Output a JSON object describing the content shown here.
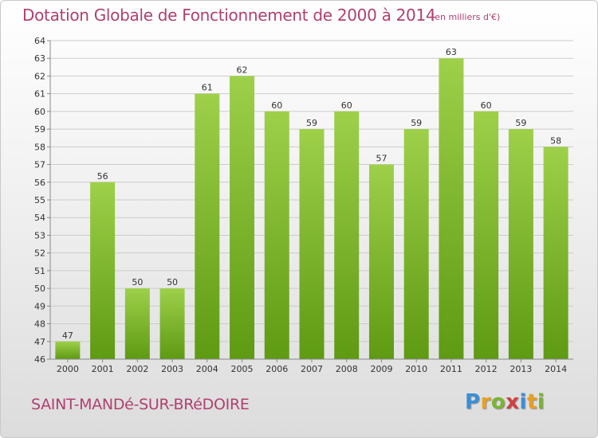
{
  "header": {
    "title": "Dotation Globale de Fonctionnement de 2000 à 2014",
    "unit_note": "(en milliers d'€)"
  },
  "footer": {
    "commune": "SAINT-MANDé-SUR-BRéDOIRE",
    "brand_letters": [
      "P",
      "r",
      "o",
      "x",
      "i",
      "t",
      "i"
    ],
    "brand_colors": [
      "#3a8fd6",
      "#e8a020",
      "#7ab530",
      "#d04040",
      "#3a8fd6",
      "#e8a020",
      "#7ab530"
    ]
  },
  "colors": {
    "title": "#b04070",
    "bar_light": "#9ed04a",
    "bar_dark": "#5e9a12",
    "grid": "#cccccc",
    "axis_text": "#333333"
  },
  "chart_data": {
    "type": "bar",
    "title": "Dotation Globale de Fonctionnement de 2000 à 2014",
    "subtitle": "(en milliers d'€)",
    "categories": [
      "2000",
      "2001",
      "2002",
      "2003",
      "2004",
      "2005",
      "2006",
      "2007",
      "2008",
      "2009",
      "2010",
      "2011",
      "2012",
      "2013",
      "2014"
    ],
    "values": [
      47,
      56,
      50,
      50,
      61,
      62,
      60,
      59,
      60,
      57,
      59,
      63,
      60,
      59,
      58
    ],
    "data_labels": [
      "47",
      "56",
      "50",
      "50",
      "61",
      "62",
      "60",
      "59",
      "60",
      "57",
      "59",
      "63",
      "60",
      "59",
      "58"
    ],
    "ylim": [
      46,
      64
    ],
    "yticks": [
      46,
      47,
      48,
      49,
      50,
      51,
      52,
      53,
      54,
      55,
      56,
      57,
      58,
      59,
      60,
      61,
      62,
      63,
      64
    ],
    "xlabel": "",
    "ylabel": "",
    "grid": true,
    "legend": "none"
  }
}
